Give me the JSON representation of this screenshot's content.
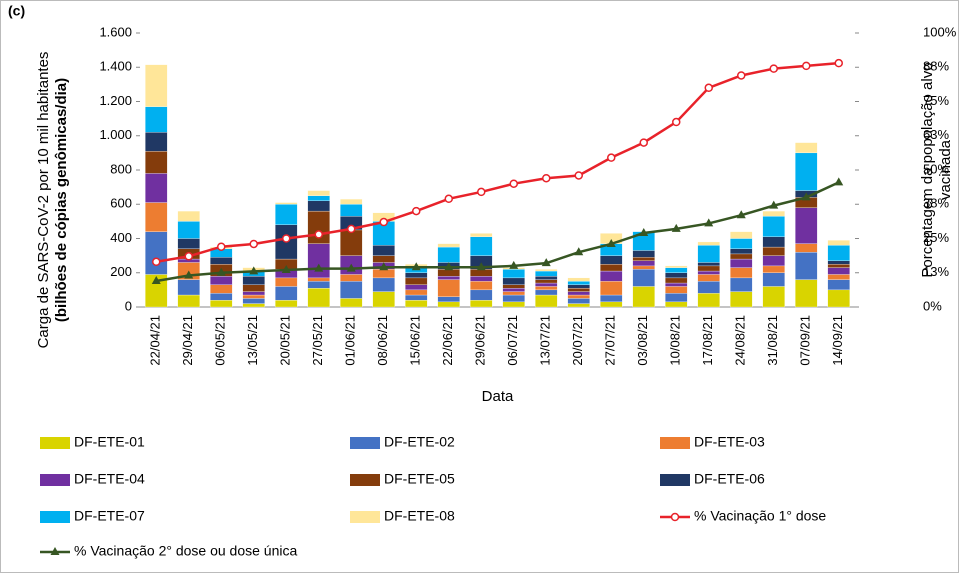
{
  "chart_data": {
    "type": "bar",
    "stacked": true,
    "panel_label": "(c)",
    "x_label": "Data",
    "y_label": [
      "Carga de SARS-CoV-2 por 10 mil habitantes",
      "(bilhões de cópias genômicas/dia)"
    ],
    "y2_label": [
      "Porcentagem da população alvo",
      "vacinada"
    ],
    "categories": [
      "22/04/21",
      "29/04/21",
      "06/05/21",
      "13/05/21",
      "20/05/21",
      "27/05/21",
      "01/06/21",
      "08/06/21",
      "15/06/21",
      "22/06/21",
      "29/06/21",
      "06/07/21",
      "13/07/21",
      "20/07/21",
      "27/07/21",
      "03/08/21",
      "10/08/21",
      "17/08/21",
      "24/08/21",
      "31/08/21",
      "07/09/21",
      "14/09/21"
    ],
    "ylim": [
      0,
      1600
    ],
    "yticks": [
      0,
      200,
      400,
      600,
      800,
      {
        "value": 1000,
        "label": "1.000"
      },
      {
        "value": 1200,
        "label": "1.200"
      },
      {
        "value": 1400,
        "label": "1.400"
      },
      {
        "value": 1600,
        "label": "1.600"
      }
    ],
    "y2lim": [
      0,
      100
    ],
    "y2ticks": [
      {
        "value": 0,
        "label": "0%"
      },
      {
        "value": 12.5,
        "label": "13%"
      },
      {
        "value": 25,
        "label": "25%"
      },
      {
        "value": 37.5,
        "label": "38%"
      },
      {
        "value": 50,
        "label": "50%"
      },
      {
        "value": 62.5,
        "label": "63%"
      },
      {
        "value": 75,
        "label": "75%"
      },
      {
        "value": 87.5,
        "label": "88%"
      },
      {
        "value": 100,
        "label": "100%"
      }
    ],
    "series": [
      {
        "name": "DF-ETE-01",
        "color": "#d9d400",
        "values": [
          190,
          70,
          40,
          20,
          40,
          110,
          50,
          90,
          40,
          30,
          40,
          30,
          70,
          20,
          30,
          120,
          30,
          80,
          90,
          120,
          160,
          100
        ]
      },
      {
        "name": "DF-ETE-02",
        "color": "#4472c4",
        "values": [
          250,
          90,
          40,
          30,
          80,
          40,
          100,
          80,
          30,
          30,
          60,
          40,
          30,
          30,
          40,
          100,
          50,
          70,
          80,
          80,
          160,
          60
        ]
      },
      {
        "name": "DF-ETE-03",
        "color": "#ed7d31",
        "values": [
          170,
          100,
          50,
          20,
          50,
          20,
          40,
          50,
          30,
          100,
          50,
          20,
          20,
          20,
          80,
          20,
          40,
          40,
          60,
          40,
          50,
          30
        ]
      },
      {
        "name": "DF-ETE-04",
        "color": "#7030a0",
        "values": [
          170,
          20,
          50,
          20,
          50,
          200,
          110,
          40,
          30,
          20,
          30,
          20,
          20,
          20,
          60,
          30,
          20,
          20,
          50,
          60,
          210,
          40
        ]
      },
      {
        "name": "DF-ETE-05",
        "color": "#843c0c",
        "values": [
          130,
          60,
          70,
          40,
          60,
          190,
          150,
          40,
          40,
          40,
          40,
          20,
          20,
          20,
          40,
          20,
          30,
          30,
          30,
          50,
          60,
          20
        ]
      },
      {
        "name": "DF-ETE-06",
        "color": "#203864",
        "values": [
          110,
          60,
          40,
          50,
          200,
          60,
          80,
          60,
          30,
          40,
          80,
          40,
          20,
          20,
          50,
          40,
          30,
          20,
          30,
          60,
          40,
          20
        ]
      },
      {
        "name": "DF-ETE-07",
        "color": "#00b0f0",
        "values": [
          150,
          100,
          50,
          30,
          120,
          30,
          70,
          140,
          30,
          90,
          110,
          50,
          30,
          20,
          70,
          110,
          30,
          100,
          60,
          120,
          220,
          90
        ]
      },
      {
        "name": "DF-ETE-08",
        "color": "#ffe699",
        "values": [
          245,
          60,
          10,
          20,
          10,
          30,
          30,
          50,
          20,
          20,
          20,
          10,
          10,
          20,
          60,
          0,
          10,
          20,
          40,
          30,
          60,
          30
        ]
      },
      {
        "name": "% Vacinação 1° dose",
        "type": "line",
        "marker": "circle",
        "axis": "y2",
        "color": "#e8222a",
        "values": [
          16.5,
          18.5,
          22,
          23,
          25,
          26.5,
          28.5,
          31,
          35,
          39.5,
          42,
          45,
          47,
          48,
          54.5,
          60,
          67.5,
          80,
          84.5,
          87,
          88,
          89
        ]
      },
      {
        "name": "% Vacinação 2° dose ou dose única",
        "type": "line",
        "marker": "triangle",
        "axis": "y2",
        "color": "#375623",
        "values": [
          9.5,
          11.5,
          12.5,
          13,
          13.5,
          14,
          14,
          14.5,
          14.5,
          14.5,
          14.5,
          15,
          16,
          20,
          23,
          27,
          28.5,
          30.5,
          33.5,
          37,
          40,
          45.5
        ]
      }
    ]
  }
}
